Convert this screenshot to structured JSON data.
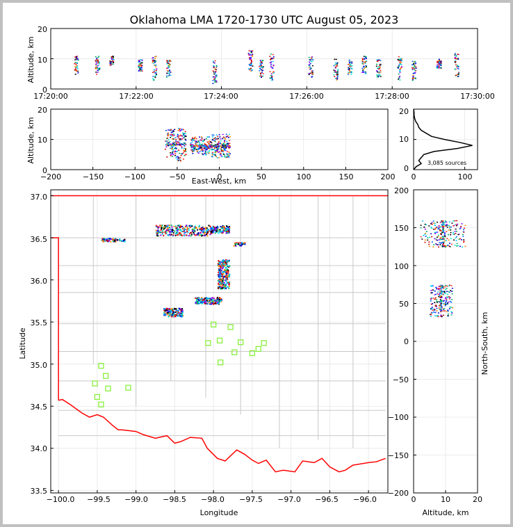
{
  "title": "Oklahoma LMA 1720-1730 UTC August 05, 2023",
  "source_count_label": "3,085 sources",
  "colors": {
    "state_border": "#ff0000",
    "county_lines": "#c8c8c8",
    "stations": "#88f03c"
  },
  "chart_data": [
    {
      "id": "altitude_vs_time",
      "type": "scatter",
      "ylabel": "Altitude, km",
      "ylim": [
        0,
        20
      ],
      "y_ticks": [
        "0",
        "10",
        "20"
      ],
      "x_ticks": [
        "17:20:00",
        "17:22:00",
        "17:24:00",
        "17:26:00",
        "17:28:00",
        "17:30:00"
      ],
      "xlim": [
        "17:20:00",
        "17:30:00"
      ],
      "clusters": [
        {
          "t": "17:20:35",
          "alt": [
            5,
            11
          ]
        },
        {
          "t": "17:21:05",
          "alt": [
            5,
            11
          ]
        },
        {
          "t": "17:21:25",
          "alt": [
            8,
            11
          ]
        },
        {
          "t": "17:22:05",
          "alt": [
            6,
            10
          ]
        },
        {
          "t": "17:22:25",
          "alt": [
            3,
            11
          ]
        },
        {
          "t": "17:22:45",
          "alt": [
            4,
            10
          ]
        },
        {
          "t": "17:23:50",
          "alt": [
            2,
            10
          ]
        },
        {
          "t": "17:24:40",
          "alt": [
            6,
            13
          ]
        },
        {
          "t": "17:24:55",
          "alt": [
            4,
            10
          ]
        },
        {
          "t": "17:25:10",
          "alt": [
            3,
            12
          ]
        },
        {
          "t": "17:26:05",
          "alt": [
            4,
            11
          ]
        },
        {
          "t": "17:26:40",
          "alt": [
            3,
            10
          ]
        },
        {
          "t": "17:27:00",
          "alt": [
            5,
            10
          ]
        },
        {
          "t": "17:27:20",
          "alt": [
            5,
            11
          ]
        },
        {
          "t": "17:27:40",
          "alt": [
            4,
            10
          ]
        },
        {
          "t": "17:28:10",
          "alt": [
            3,
            11
          ]
        },
        {
          "t": "17:28:30",
          "alt": [
            3,
            10
          ]
        },
        {
          "t": "17:29:05",
          "alt": [
            7,
            10
          ]
        },
        {
          "t": "17:29:30",
          "alt": [
            4,
            12
          ]
        }
      ]
    },
    {
      "id": "altitude_vs_east_west",
      "type": "scatter",
      "xlabel": "East-West, km",
      "ylabel": "Altitude, km",
      "xlim": [
        -200,
        200
      ],
      "ylim": [
        0,
        20
      ],
      "x_ticks": [
        "−200",
        "−150",
        "−100",
        "−50",
        "0",
        "50",
        "100",
        "150",
        "200"
      ],
      "y_ticks": [
        "0",
        "10",
        "20"
      ],
      "clusters": [
        {
          "x": [
            -65,
            -40
          ],
          "alt": [
            3,
            14
          ]
        },
        {
          "x": [
            -35,
            -10
          ],
          "alt": [
            5,
            11
          ]
        },
        {
          "x": [
            -10,
            12
          ],
          "alt": [
            4,
            12
          ]
        }
      ]
    },
    {
      "id": "altitude_histogram",
      "type": "line",
      "xlim": [
        0,
        125
      ],
      "ylim": [
        0,
        20
      ],
      "x_ticks": [
        "0",
        "100"
      ],
      "y_ticks": [
        "0",
        "10",
        "20"
      ],
      "counts": [
        {
          "alt": 0,
          "n": 0
        },
        {
          "alt": 1,
          "n": 5
        },
        {
          "alt": 2,
          "n": 15
        },
        {
          "alt": 3,
          "n": 10
        },
        {
          "alt": 4,
          "n": 15
        },
        {
          "alt": 5,
          "n": 20
        },
        {
          "alt": 6,
          "n": 40
        },
        {
          "alt": 7,
          "n": 85
        },
        {
          "alt": 8,
          "n": 115
        },
        {
          "alt": 9,
          "n": 90
        },
        {
          "alt": 10,
          "n": 60
        },
        {
          "alt": 11,
          "n": 35
        },
        {
          "alt": 12,
          "n": 25
        },
        {
          "alt": 13,
          "n": 15
        },
        {
          "alt": 14,
          "n": 10
        },
        {
          "alt": 15,
          "n": 8
        },
        {
          "alt": 16,
          "n": 4
        },
        {
          "alt": 17,
          "n": 2
        },
        {
          "alt": 18,
          "n": 1
        },
        {
          "alt": 19,
          "n": 1
        },
        {
          "alt": 20,
          "n": 0
        }
      ]
    },
    {
      "id": "plan_view",
      "type": "scatter",
      "xlabel": "Longitude",
      "ylabel": "Latitude",
      "xlim": [
        -100.1,
        -95.75
      ],
      "ylim": [
        33.47,
        37.07
      ],
      "x_ticks": [
        "−100.0",
        "−99.5",
        "−99.0",
        "−98.5",
        "−98.0",
        "−97.5",
        "−97.0",
        "−96.5",
        "−96.0"
      ],
      "y_ticks": [
        "33.5",
        "34.0",
        "34.5",
        "35.0",
        "35.5",
        "36.0",
        "36.5",
        "37.0"
      ],
      "source_clusters": [
        {
          "lon": [
            -98.75,
            -98.05
          ],
          "lat": [
            36.53,
            36.66
          ]
        },
        {
          "lon": [
            -98.05,
            -97.8
          ],
          "lat": [
            36.56,
            36.65
          ]
        },
        {
          "lon": [
            -99.45,
            -99.15
          ],
          "lat": [
            36.46,
            36.5
          ]
        },
        {
          "lon": [
            -98.65,
            -98.4
          ],
          "lat": [
            35.57,
            35.67
          ]
        },
        {
          "lon": [
            -98.25,
            -97.9
          ],
          "lat": [
            35.72,
            35.8
          ]
        },
        {
          "lon": [
            -97.95,
            -97.8
          ],
          "lat": [
            35.9,
            36.25
          ]
        },
        {
          "lon": [
            -97.75,
            -97.6
          ],
          "lat": [
            36.41,
            36.45
          ]
        }
      ],
      "stations": [
        {
          "lon": -98.0,
          "lat": 35.47
        },
        {
          "lon": -97.78,
          "lat": 35.44
        },
        {
          "lon": -98.07,
          "lat": 35.25
        },
        {
          "lon": -97.92,
          "lat": 35.28
        },
        {
          "lon": -97.65,
          "lat": 35.26
        },
        {
          "lon": -97.35,
          "lat": 35.25
        },
        {
          "lon": -97.42,
          "lat": 35.18
        },
        {
          "lon": -97.73,
          "lat": 35.14
        },
        {
          "lon": -97.5,
          "lat": 35.13
        },
        {
          "lon": -97.91,
          "lat": 35.02
        },
        {
          "lon": -99.45,
          "lat": 34.98
        },
        {
          "lon": -99.39,
          "lat": 34.86
        },
        {
          "lon": -99.53,
          "lat": 34.77
        },
        {
          "lon": -99.36,
          "lat": 34.71
        },
        {
          "lon": -99.1,
          "lat": 34.72
        },
        {
          "lon": -99.5,
          "lat": 34.61
        },
        {
          "lon": -99.45,
          "lat": 34.52
        }
      ]
    },
    {
      "id": "north_south_vs_altitude",
      "type": "scatter",
      "xlabel": "Altitude, km",
      "ylabel": "North-South, km",
      "xlim": [
        0,
        20
      ],
      "ylim": [
        -200,
        200
      ],
      "x_ticks": [
        "0",
        "10",
        "20"
      ],
      "y_ticks": [
        "−200",
        "−150",
        "−100",
        "−50",
        "0",
        "50",
        "100",
        "150",
        "200"
      ],
      "clusters": [
        {
          "alt": [
            2,
            16
          ],
          "ns": [
            125,
            160
          ]
        },
        {
          "alt": [
            5,
            12
          ],
          "ns": [
            33,
            75
          ]
        }
      ]
    }
  ]
}
